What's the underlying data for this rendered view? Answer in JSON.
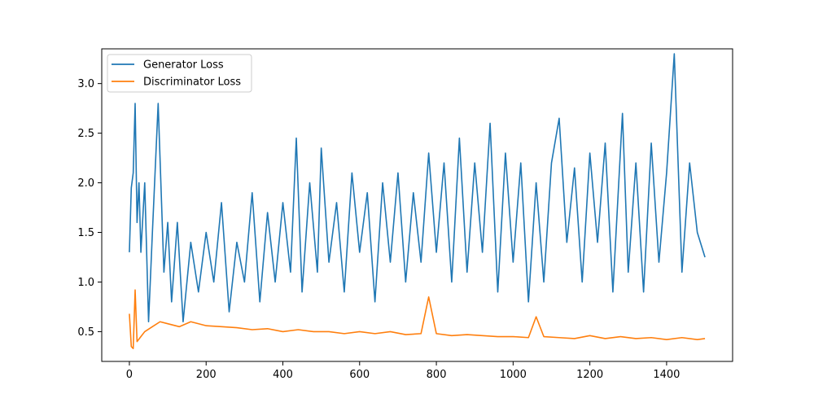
{
  "chart_data": {
    "type": "line",
    "title": "",
    "xlabel": "",
    "ylabel": "",
    "xlim": [
      -72,
      1572
    ],
    "ylim": [
      0.2,
      3.35
    ],
    "xticks": [
      0,
      200,
      400,
      600,
      800,
      1000,
      1200,
      1400
    ],
    "yticks": [
      0.5,
      1.0,
      1.5,
      2.0,
      2.5,
      3.0
    ],
    "xtick_labels": [
      "0",
      "200",
      "400",
      "600",
      "800",
      "1000",
      "1200",
      "1400"
    ],
    "ytick_labels": [
      "0.5",
      "1.0",
      "1.5",
      "2.0",
      "2.5",
      "3.0"
    ],
    "grid": false,
    "legend_position": "upper-left",
    "series": [
      {
        "name": "Generator Loss",
        "color": "#1f77b4",
        "x": [
          0,
          5,
          10,
          15,
          20,
          25,
          30,
          40,
          50,
          60,
          75,
          90,
          100,
          110,
          125,
          140,
          160,
          180,
          200,
          220,
          240,
          260,
          280,
          300,
          320,
          340,
          360,
          380,
          400,
          420,
          435,
          450,
          470,
          490,
          500,
          520,
          540,
          560,
          580,
          600,
          620,
          640,
          660,
          680,
          700,
          720,
          740,
          760,
          780,
          800,
          820,
          840,
          860,
          880,
          900,
          920,
          940,
          960,
          980,
          1000,
          1020,
          1040,
          1060,
          1080,
          1100,
          1120,
          1140,
          1160,
          1180,
          1200,
          1220,
          1240,
          1260,
          1285,
          1300,
          1320,
          1340,
          1360,
          1380,
          1400,
          1420,
          1440,
          1460,
          1480,
          1500
        ],
        "y": [
          1.3,
          1.95,
          2.1,
          2.8,
          1.6,
          2.0,
          1.3,
          2.0,
          0.6,
          1.5,
          2.8,
          1.1,
          1.6,
          0.8,
          1.6,
          0.6,
          1.4,
          0.9,
          1.5,
          1.0,
          1.8,
          0.7,
          1.4,
          1.0,
          1.9,
          0.8,
          1.7,
          1.0,
          1.8,
          1.1,
          2.45,
          0.9,
          2.0,
          1.1,
          2.35,
          1.2,
          1.8,
          0.9,
          2.1,
          1.3,
          1.9,
          0.8,
          2.0,
          1.2,
          2.1,
          1.0,
          1.9,
          1.2,
          2.3,
          1.3,
          2.2,
          1.0,
          2.45,
          1.1,
          2.2,
          1.3,
          2.6,
          0.9,
          2.3,
          1.2,
          2.2,
          0.8,
          2.0,
          1.0,
          2.2,
          2.65,
          1.4,
          2.15,
          1.0,
          2.3,
          1.4,
          2.4,
          0.9,
          2.7,
          1.1,
          2.2,
          0.9,
          2.4,
          1.2,
          2.1,
          3.3,
          1.1,
          2.2,
          1.5,
          1.25
        ]
      },
      {
        "name": "Discriminator Loss",
        "color": "#ff7f0e",
        "x": [
          0,
          5,
          10,
          15,
          20,
          30,
          40,
          60,
          80,
          100,
          130,
          160,
          200,
          240,
          280,
          320,
          360,
          400,
          440,
          480,
          520,
          560,
          600,
          640,
          680,
          720,
          760,
          780,
          800,
          840,
          880,
          920,
          960,
          1000,
          1040,
          1060,
          1080,
          1120,
          1160,
          1200,
          1240,
          1280,
          1320,
          1360,
          1400,
          1440,
          1480,
          1500
        ],
        "y": [
          0.68,
          0.35,
          0.33,
          0.92,
          0.4,
          0.45,
          0.5,
          0.55,
          0.6,
          0.58,
          0.55,
          0.6,
          0.56,
          0.55,
          0.54,
          0.52,
          0.53,
          0.5,
          0.52,
          0.5,
          0.5,
          0.48,
          0.5,
          0.48,
          0.5,
          0.47,
          0.48,
          0.85,
          0.48,
          0.46,
          0.47,
          0.46,
          0.45,
          0.45,
          0.44,
          0.65,
          0.45,
          0.44,
          0.43,
          0.46,
          0.43,
          0.45,
          0.43,
          0.44,
          0.42,
          0.44,
          0.42,
          0.43
        ]
      }
    ]
  }
}
